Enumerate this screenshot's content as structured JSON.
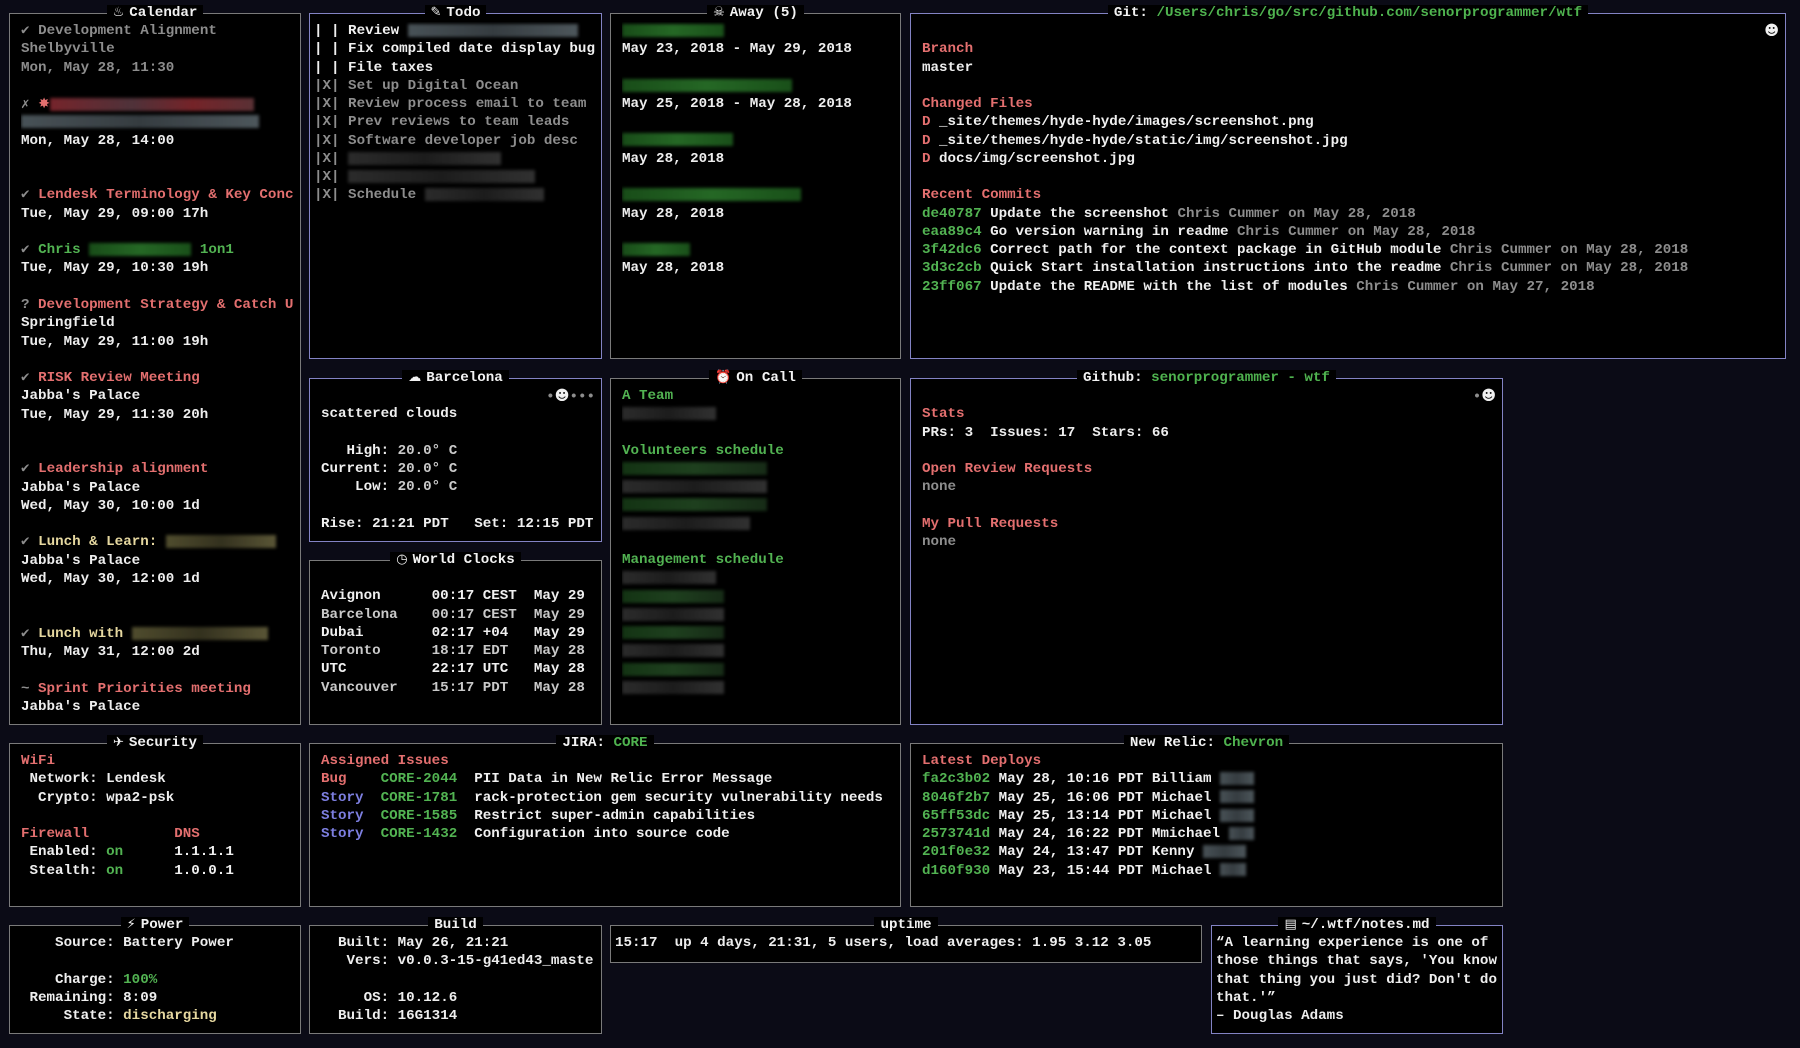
{
  "panels": {
    "calendar": {
      "title": "Calendar",
      "icon": "popcorn-icon",
      "lines": [
        [
          {
            "t": "✔ ",
            "c": "gray"
          },
          {
            "t": "Development Alignment",
            "c": "gray"
          }
        ],
        [
          {
            "t": "Shelbyville",
            "c": "gray"
          }
        ],
        [
          {
            "t": "Mon, May 28, 11:30",
            "c": "gray"
          }
        ],
        "",
        [
          {
            "t": "✗ ",
            "c": "gray"
          },
          {
            "icon": "explosion-icon",
            "c": "red"
          },
          {
            "redact": 24,
            "c": "red"
          }
        ],
        [
          {
            "redact": 28,
            "c": "gray"
          }
        ],
        "Mon, May 28, 14:00",
        "",
        "",
        [
          {
            "t": "✔ ",
            "c": "gray"
          },
          {
            "t": "Lendesk Terminology & Key Conc",
            "c": "red"
          }
        ],
        "Tue, May 29, 09:00 17h",
        "",
        [
          {
            "t": "✔ ",
            "c": "gray"
          },
          {
            "t": "Chris ",
            "c": "green"
          },
          {
            "redact": 12,
            "c": "green"
          },
          {
            "t": " 1on1",
            "c": "green"
          }
        ],
        "Tue, May 29, 10:30 19h",
        "",
        [
          {
            "t": "? ",
            "c": "gray"
          },
          {
            "t": "Development Strategy & Catch U",
            "c": "red"
          }
        ],
        "Springfield",
        "Tue, May 29, 11:00 19h",
        "",
        [
          {
            "t": "✔ ",
            "c": "gray"
          },
          {
            "t": "RISK Review Meeting",
            "c": "red"
          }
        ],
        "Jabba's Palace",
        "Tue, May 29, 11:30 20h",
        "",
        "",
        [
          {
            "t": "✔ ",
            "c": "gray"
          },
          {
            "t": "Leadership alignment",
            "c": "red"
          }
        ],
        "Jabba's Palace",
        "Wed, May 30, 10:00 1d",
        "",
        [
          {
            "t": "✔ ",
            "c": "gray"
          },
          {
            "t": "Lunch & Learn:",
            "c": "yellow"
          },
          {
            "t": " "
          },
          {
            "redact": 13,
            "c": "yellow"
          }
        ],
        "Jabba's Palace",
        "Wed, May 30, 12:00 1d",
        "",
        "",
        [
          {
            "t": "✔ ",
            "c": "gray"
          },
          {
            "t": "Lunch with ",
            "c": "yellow"
          },
          {
            "redact": 16,
            "c": "yellow"
          }
        ],
        "Thu, May 31, 12:00 2d",
        "",
        [
          {
            "t": "~ ",
            "c": "gray"
          },
          {
            "t": "Sprint Priorities meeting",
            "c": "red"
          }
        ],
        "Jabba's Palace"
      ]
    },
    "todo": {
      "title": "Todo",
      "icon": "memo-icon",
      "lines": [
        [
          {
            "t": "| | Review ",
            "c": "white"
          },
          {
            "redact": 20,
            "c": "gray"
          }
        ],
        [
          {
            "t": "| | Fix compiled date display bug",
            "c": "white"
          }
        ],
        [
          {
            "t": "| | File taxes",
            "c": "white"
          }
        ],
        [
          {
            "t": "|X| Set up Digital Ocean",
            "c": "gray"
          }
        ],
        [
          {
            "t": "|X| Review process email to team",
            "c": "gray"
          }
        ],
        [
          {
            "t": "|X| Prev reviews to team leads",
            "c": "gray"
          }
        ],
        [
          {
            "t": "|X| Software developer job desc",
            "c": "gray"
          }
        ],
        [
          {
            "t": "|X| ",
            "c": "gray"
          },
          {
            "redact": 18,
            "c": "dark"
          }
        ],
        [
          {
            "t": "|X| ",
            "c": "gray"
          },
          {
            "redact": 22,
            "c": "dark"
          }
        ],
        [
          {
            "t": "|X| Schedule ",
            "c": "gray"
          },
          {
            "redact": 14,
            "c": "dark"
          }
        ]
      ]
    },
    "away": {
      "title": "Away (5)",
      "icon": "alien-icon",
      "lines": [
        [
          {
            "redact": 12,
            "c": "green"
          }
        ],
        "May 23, 2018 - May 29, 2018",
        "",
        [
          {
            "redact": 20,
            "c": "green"
          }
        ],
        "May 25, 2018 - May 28, 2018",
        "",
        [
          {
            "redact": 13,
            "c": "green"
          }
        ],
        "May 28, 2018",
        "",
        [
          {
            "redact": 21,
            "c": "green"
          }
        ],
        "May 28, 2018",
        "",
        [
          {
            "redact": 8,
            "c": "green"
          }
        ],
        "May 28, 2018"
      ]
    },
    "git": {
      "title": "Git: ",
      "title_value": "/Users/chris/go/src/github.com/senorprogrammer/wtf",
      "icon": "",
      "lines": [
        [
          {
            "icon": "clown-icon",
            "right": true
          }
        ],
        [
          {
            "t": "Branch",
            "c": "red"
          }
        ],
        "master",
        "",
        [
          {
            "t": "Changed Files",
            "c": "red"
          }
        ],
        [
          {
            "t": "D ",
            "c": "red"
          },
          {
            "t": "_site/themes/hyde-hyde/images/screenshot.png"
          }
        ],
        [
          {
            "t": "D ",
            "c": "red"
          },
          {
            "t": "_site/themes/hyde-hyde/static/img/screenshot.jpg"
          }
        ],
        [
          {
            "t": "D ",
            "c": "red"
          },
          {
            "t": "docs/img/screenshot.jpg"
          }
        ],
        "",
        [
          {
            "t": "Recent Commits",
            "c": "red"
          }
        ],
        [
          {
            "t": "de40787",
            "c": "green"
          },
          {
            "t": " Update the screenshot "
          },
          {
            "t": "Chris Cummer on May 28, 2018",
            "c": "gray"
          }
        ],
        [
          {
            "t": "eaa89c4",
            "c": "green"
          },
          {
            "t": " Go version warning in readme "
          },
          {
            "t": "Chris Cummer on May 28, 2018",
            "c": "gray"
          }
        ],
        [
          {
            "t": "3f42dc6",
            "c": "green"
          },
          {
            "t": " Correct path for the context package in GitHub module "
          },
          {
            "t": "Chris Cummer on May 28, 2018",
            "c": "gray"
          }
        ],
        [
          {
            "t": "3d3c2cb",
            "c": "green"
          },
          {
            "t": " Quick Start installation instructions into the readme "
          },
          {
            "t": "Chris Cummer on May 28, 2018",
            "c": "gray"
          }
        ],
        [
          {
            "t": "23ff067",
            "c": "green"
          },
          {
            "t": " Update the README with the list of modules "
          },
          {
            "t": "Chris Cummer on May 27, 2018",
            "c": "gray"
          }
        ]
      ]
    },
    "weather": {
      "title": "Barcelona",
      "icon": "cloud-icon",
      "lines": [
        [
          {
            "t": "•",
            "c": "gray"
          },
          {
            "icon": "clown-icon",
            "right": true
          },
          {
            "t": "•••",
            "c": "gray"
          }
        ],
        "scattered clouds",
        "",
        [
          {
            "t": "   High: "
          },
          {
            "t": "20.0° C",
            "c": "lgray"
          }
        ],
        [
          {
            "t": "Current: "
          },
          {
            "t": "20.0° C",
            "c": "lgray"
          }
        ],
        [
          {
            "t": "    Low: "
          },
          {
            "t": "20.0° C",
            "c": "lgray"
          }
        ],
        "",
        [
          {
            "t": "Rise: 21:21 PDT   Set: 12:15 PDT"
          }
        ]
      ]
    },
    "clocks": {
      "title": "World Clocks",
      "icon": "clock-icon",
      "lines": [
        "",
        [
          {
            "t": "Avignon",
            "role": "clock-city"
          },
          {
            "t": "00:17 CEST",
            "role": "clock-time"
          },
          {
            "t": "May 29"
          }
        ],
        [
          {
            "t": "Barcelona",
            "role": "clock-city",
            "c": "lgray"
          },
          {
            "t": "00:17 CEST",
            "role": "clock-time",
            "c": "lgray"
          },
          {
            "t": "May 29",
            "c": "lgray"
          }
        ],
        [
          {
            "t": "Dubai",
            "role": "clock-city"
          },
          {
            "t": "02:17 +04",
            "role": "clock-time"
          },
          {
            "t": "May 29"
          }
        ],
        [
          {
            "t": "Toronto",
            "role": "clock-city",
            "c": "lgray"
          },
          {
            "t": "18:17 EDT",
            "role": "clock-time",
            "c": "lgray"
          },
          {
            "t": "May 28",
            "c": "lgray"
          }
        ],
        [
          {
            "t": "UTC",
            "role": "clock-city"
          },
          {
            "t": "22:17 UTC",
            "role": "clock-time"
          },
          {
            "t": "May 28"
          }
        ],
        [
          {
            "t": "Vancouver",
            "role": "clock-city",
            "c": "lgray"
          },
          {
            "t": "15:17 PDT",
            "role": "clock-time",
            "c": "lgray"
          },
          {
            "t": "May 28",
            "c": "lgray"
          }
        ]
      ]
    },
    "oncall": {
      "title": "On Call",
      "icon": "alarm-clock-icon",
      "lines": [
        [
          {
            "t": "A Team",
            "c": "green"
          }
        ],
        [
          {
            "redact": 11,
            "c": "dark"
          }
        ],
        "",
        [
          {
            "t": "Volunteers schedule",
            "c": "green"
          }
        ],
        [
          {
            "redact": 17,
            "c": "dgreen"
          }
        ],
        [
          {
            "redact": 17,
            "c": "dark"
          }
        ],
        [
          {
            "redact": 17,
            "c": "dgreen"
          }
        ],
        [
          {
            "redact": 15,
            "c": "dark"
          }
        ],
        "",
        [
          {
            "t": "Management schedule",
            "c": "green"
          }
        ],
        [
          {
            "redact": 11,
            "c": "dark"
          }
        ],
        [
          {
            "redact": 12,
            "c": "dgreen"
          }
        ],
        [
          {
            "redact": 12,
            "c": "dark"
          }
        ],
        [
          {
            "redact": 12,
            "c": "dgreen"
          }
        ],
        [
          {
            "redact": 12,
            "c": "dark"
          }
        ],
        [
          {
            "redact": 12,
            "c": "dgreen"
          }
        ],
        [
          {
            "redact": 12,
            "c": "dark"
          }
        ]
      ]
    },
    "github": {
      "title": "Github: ",
      "title_value": "senorprogrammer - wtf",
      "icon": "",
      "lines": [
        [
          {
            "t": "•",
            "c": "gray"
          },
          {
            "icon": "clown-icon",
            "right": true
          }
        ],
        [
          {
            "t": "Stats",
            "c": "red"
          }
        ],
        "PRs: 3  Issues: 17  Stars: 66",
        "",
        [
          {
            "t": "Open Review Requests",
            "c": "red"
          }
        ],
        [
          {
            "t": "none",
            "c": "gray"
          }
        ],
        "",
        [
          {
            "t": "My Pull Requests",
            "c": "red"
          }
        ],
        [
          {
            "t": "none",
            "c": "gray"
          }
        ]
      ]
    },
    "security": {
      "title": "Security",
      "icon": "runner-icon",
      "lines": [
        [
          {
            "t": "WiFi",
            "c": "red"
          }
        ],
        " Network: Lendesk",
        "  Crypto: wpa2-psk",
        "",
        [
          {
            "t": "Firewall",
            "c": "red"
          },
          {
            "t": "DNS",
            "c": "red",
            "role": "dns-col"
          }
        ],
        [
          {
            "t": " Enabled: "
          },
          {
            "t": "on",
            "c": "green"
          },
          {
            "t": "1.1.1.1",
            "role": "dns-col"
          }
        ],
        [
          {
            "t": " Stealth: "
          },
          {
            "t": "on",
            "c": "green"
          },
          {
            "t": "1.0.0.1",
            "role": "dns-col"
          }
        ]
      ]
    },
    "jira": {
      "title": "JIRA: ",
      "title_value": "CORE",
      "icon": "",
      "lines": [
        [
          {
            "t": "Assigned Issues",
            "c": "red"
          }
        ],
        [
          {
            "t": "Bug",
            "c": "red",
            "role": "issue-type"
          },
          {
            "t": "CORE-2044",
            "c": "green",
            "role": "issue-key"
          },
          {
            "t": "PII Data in New Relic Error Message"
          }
        ],
        [
          {
            "t": "Story",
            "c": "blue",
            "role": "issue-type"
          },
          {
            "t": "CORE-1781",
            "c": "green",
            "role": "issue-key"
          },
          {
            "t": "rack-protection gem security vulnerability needs"
          }
        ],
        [
          {
            "t": "Story",
            "c": "blue",
            "role": "issue-type"
          },
          {
            "t": "CORE-1585",
            "c": "green",
            "role": "issue-key"
          },
          {
            "t": "Restrict super-admin capabilities"
          }
        ],
        [
          {
            "t": "Story",
            "c": "blue",
            "role": "issue-type"
          },
          {
            "t": "CORE-1432",
            "c": "green",
            "role": "issue-key"
          },
          {
            "t": "Configuration into source code"
          }
        ]
      ]
    },
    "newrelic": {
      "title": "New Relic: ",
      "title_value": "Chevron",
      "icon": "",
      "lines": [
        [
          {
            "t": "Latest Deploys",
            "c": "red"
          }
        ],
        [
          {
            "t": "fa2c3b02",
            "c": "green"
          },
          {
            "t": " May 28, 10:16 PDT Billiam "
          },
          {
            "redact": 4,
            "c": "gray"
          }
        ],
        [
          {
            "t": "8046f2b7",
            "c": "green"
          },
          {
            "t": " May 25, 16:06 PDT Michael "
          },
          {
            "redact": 4,
            "c": "gray"
          }
        ],
        [
          {
            "t": "65ff53dc",
            "c": "green"
          },
          {
            "t": " May 25, 13:14 PDT Michael "
          },
          {
            "redact": 4,
            "c": "gray"
          }
        ],
        [
          {
            "t": "2573741d",
            "c": "green"
          },
          {
            "t": " May 24, 16:22 PDT Mmichael "
          },
          {
            "redact": 3,
            "c": "gray"
          }
        ],
        [
          {
            "t": "201f0e32",
            "c": "green"
          },
          {
            "t": " May 24, 13:47 PDT Kenny "
          },
          {
            "redact": 5,
            "c": "gray"
          }
        ],
        [
          {
            "t": "d160f930",
            "c": "green"
          },
          {
            "t": " May 23, 15:44 PDT Michael "
          },
          {
            "redact": 3,
            "c": "gray"
          }
        ]
      ]
    },
    "power": {
      "title": "Power",
      "icon": "lightning-icon",
      "lines": [
        "    Source: Battery Power",
        "",
        [
          {
            "t": "    Charge: "
          },
          {
            "t": "100%",
            "c": "green"
          }
        ],
        " Remaining: 8:09",
        [
          {
            "t": "     State: "
          },
          {
            "t": "discharging",
            "c": "yellow"
          }
        ]
      ]
    },
    "build": {
      "title": "Build",
      "icon": "",
      "lines": [
        "  Built: May 26, 21:21",
        "   Vers: v0.0.3-15-g41ed43_maste",
        "",
        "     OS: 10.12.6",
        "  Build: 16G1314"
      ]
    },
    "uptime": {
      "title": "uptime",
      "icon": "",
      "lines": [
        "15:17  up 4 days, 21:31, 5 users, load averages: 1.95 3.12 3.05"
      ]
    },
    "notes": {
      "title": "~/.wtf/notes.md",
      "icon": "document-icon",
      "lines": [
        "“A learning experience is one of",
        "those things that says, 'You know",
        "that thing you just did? Don't do",
        "that.'”",
        "– Douglas Adams"
      ]
    }
  }
}
